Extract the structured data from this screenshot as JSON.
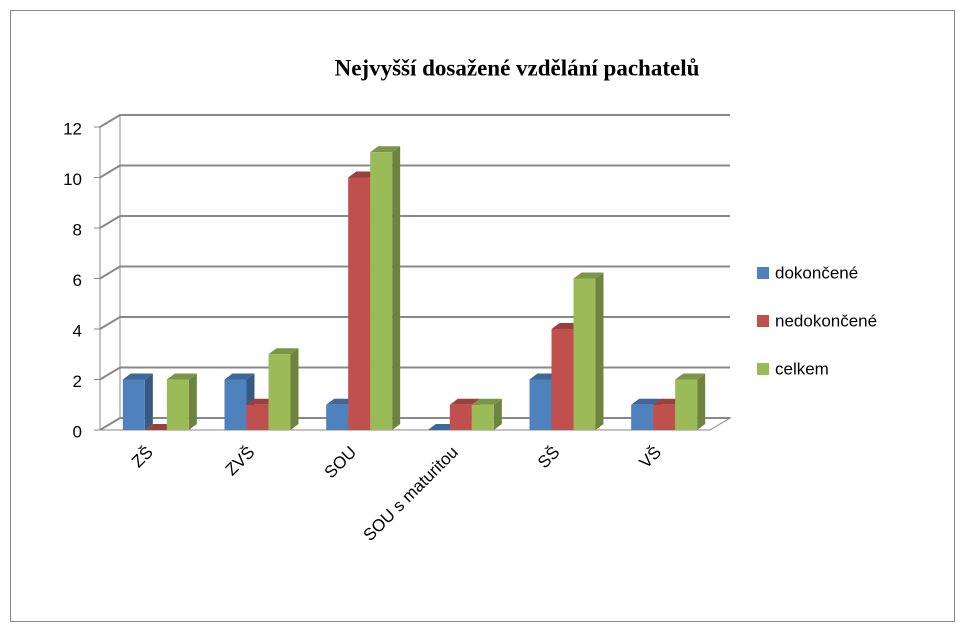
{
  "chart_data": {
    "type": "bar3d",
    "title": "Nejvyšší dosažené vzdělání pachatelů",
    "categories": [
      "ZŠ",
      "ZVŠ",
      "SOU",
      "SOU s maturitou",
      "SŠ",
      "VŠ"
    ],
    "series": [
      {
        "name": "dokončené",
        "color": "#4f81bd",
        "values": [
          2,
          2,
          1,
          0,
          2,
          1
        ]
      },
      {
        "name": "nedokončené",
        "color": "#c0504d",
        "values": [
          0,
          1,
          10,
          1,
          4,
          1
        ]
      },
      {
        "name": "celkem",
        "color": "#9bbb59",
        "values": [
          2,
          3,
          11,
          1,
          6,
          2
        ]
      }
    ],
    "ylim": [
      0,
      12
    ],
    "yticks": [
      0,
      2,
      4,
      6,
      8,
      10,
      12
    ],
    "grid": true,
    "legend": "right"
  }
}
